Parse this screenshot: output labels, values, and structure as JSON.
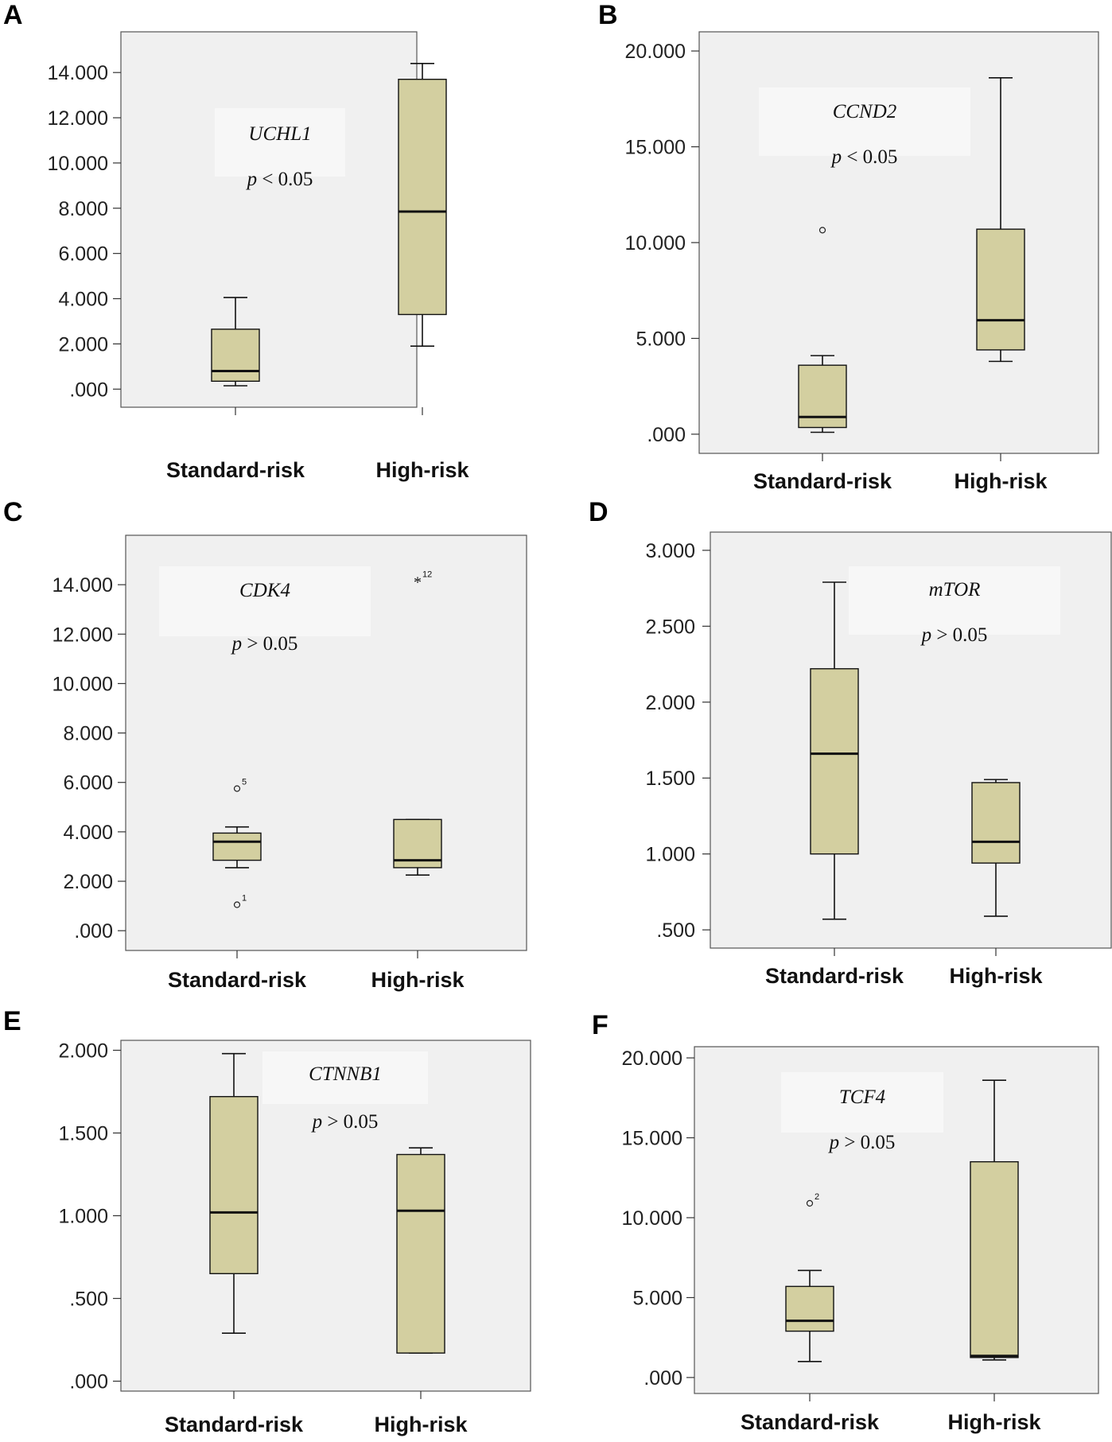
{
  "chart_data": [
    {
      "type": "boxplot",
      "panel": "A",
      "gene": "UCHL1",
      "p_prefix": "p",
      "p_rest": " < 0.05",
      "categories": [
        "Standard-risk",
        "High-risk"
      ],
      "y_ticks": [
        ".000",
        "2.000",
        "4.000",
        "6.000",
        "8.000",
        "10.000",
        "12.000",
        "14.000"
      ],
      "y_tick_values": [
        0,
        2,
        4,
        6,
        8,
        10,
        12,
        14
      ],
      "ylim": [
        -0.8,
        15.8
      ],
      "boxes": [
        {
          "category": "Standard-risk",
          "min": 0.15,
          "q1": 0.35,
          "median": 0.8,
          "q3": 2.65,
          "max": 4.05
        },
        {
          "category": "High-risk",
          "min": 1.9,
          "q1": 3.3,
          "median": 7.85,
          "q3": 13.7,
          "max": 14.4
        }
      ],
      "outliers": []
    },
    {
      "type": "boxplot",
      "panel": "B",
      "gene": "CCND2",
      "p_prefix": "p",
      "p_rest": " < 0.05",
      "categories": [
        "Standard-risk",
        "High-risk"
      ],
      "y_ticks": [
        ".000",
        "5.000",
        "10.000",
        "15.000",
        "20.000"
      ],
      "y_tick_values": [
        0,
        5,
        10,
        15,
        20
      ],
      "ylim": [
        -1.0,
        21.0
      ],
      "boxes": [
        {
          "category": "Standard-risk",
          "min": 0.1,
          "q1": 0.35,
          "median": 0.9,
          "q3": 3.6,
          "max": 4.1
        },
        {
          "category": "High-risk",
          "min": 3.8,
          "q1": 4.4,
          "median": 5.95,
          "q3": 10.7,
          "max": 18.6
        }
      ],
      "outliers": [
        {
          "category": "Standard-risk",
          "value": 10.65,
          "marker": "circle",
          "label": ""
        }
      ]
    },
    {
      "type": "boxplot",
      "panel": "C",
      "gene": "CDK4",
      "p_prefix": "p",
      "p_rest": " > 0.05",
      "categories": [
        "Standard-risk",
        "High-risk"
      ],
      "y_ticks": [
        ".000",
        "2.000",
        "4.000",
        "6.000",
        "8.000",
        "10.000",
        "12.000",
        "14.000"
      ],
      "y_tick_values": [
        0,
        2,
        4,
        6,
        8,
        10,
        12,
        14
      ],
      "ylim": [
        -0.8,
        16.0
      ],
      "boxes": [
        {
          "category": "Standard-risk",
          "min": 2.55,
          "q1": 2.85,
          "median": 3.6,
          "q3": 3.95,
          "max": 4.2
        },
        {
          "category": "High-risk",
          "min": 2.25,
          "q1": 2.55,
          "median": 2.85,
          "q3": 4.5,
          "max": 4.5
        }
      ],
      "outliers": [
        {
          "category": "Standard-risk",
          "value": 5.75,
          "marker": "circle",
          "label": "5"
        },
        {
          "category": "Standard-risk",
          "value": 1.05,
          "marker": "circle",
          "label": "1"
        },
        {
          "category": "High-risk",
          "value": 14.15,
          "marker": "star",
          "label": "12"
        }
      ]
    },
    {
      "type": "boxplot",
      "panel": "D",
      "gene": "mTOR",
      "p_prefix": "p",
      "p_rest": " > 0.05",
      "categories": [
        "Standard-risk",
        "High-risk"
      ],
      "y_ticks": [
        ".500",
        "1.000",
        "1.500",
        "2.000",
        "2.500",
        "3.000"
      ],
      "y_tick_values": [
        0.5,
        1.0,
        1.5,
        2.0,
        2.5,
        3.0
      ],
      "ylim": [
        0.38,
        3.12
      ],
      "boxes": [
        {
          "category": "Standard-risk",
          "min": 0.57,
          "q1": 1.0,
          "median": 1.66,
          "q3": 2.22,
          "max": 2.79
        },
        {
          "category": "High-risk",
          "min": 0.59,
          "q1": 0.94,
          "median": 1.08,
          "q3": 1.47,
          "max": 1.49
        }
      ],
      "outliers": []
    },
    {
      "type": "boxplot",
      "panel": "E",
      "gene": "CTNNB1",
      "p_prefix": "p",
      "p_rest": " > 0.05",
      "categories": [
        "Standard-risk",
        "High-risk"
      ],
      "y_ticks": [
        ".000",
        ".500",
        "1.000",
        "1.500",
        "2.000"
      ],
      "y_tick_values": [
        0,
        0.5,
        1.0,
        1.5,
        2.0
      ],
      "ylim": [
        -0.06,
        2.06
      ],
      "boxes": [
        {
          "category": "Standard-risk",
          "min": 0.29,
          "q1": 0.65,
          "median": 1.02,
          "q3": 1.72,
          "max": 1.98
        },
        {
          "category": "High-risk",
          "min": 0.17,
          "q1": 0.17,
          "median": 1.03,
          "q3": 1.37,
          "max": 1.41
        }
      ],
      "outliers": []
    },
    {
      "type": "boxplot",
      "panel": "F",
      "gene": "TCF4",
      "p_prefix": "p",
      "p_rest": " > 0.05",
      "categories": [
        "Standard-risk",
        "High-risk"
      ],
      "y_ticks": [
        ".000",
        "5.000",
        "10.000",
        "15.000",
        "20.000"
      ],
      "y_tick_values": [
        0,
        5,
        10,
        15,
        20
      ],
      "ylim": [
        -1.0,
        20.7
      ],
      "boxes": [
        {
          "category": "Standard-risk",
          "min": 1.0,
          "q1": 2.9,
          "median": 3.55,
          "q3": 5.7,
          "max": 6.7
        },
        {
          "category": "High-risk",
          "min": 1.1,
          "q1": 1.25,
          "median": 1.35,
          "q3": 13.5,
          "max": 18.6
        }
      ],
      "outliers": [
        {
          "category": "Standard-risk",
          "value": 10.9,
          "marker": "circle",
          "label": "2"
        }
      ]
    }
  ],
  "style": {
    "plot_background": "#f0f0f0",
    "box_fill": "#d3cfa0",
    "line_color": "#111111",
    "annotation_background": "#f7f7f7"
  }
}
